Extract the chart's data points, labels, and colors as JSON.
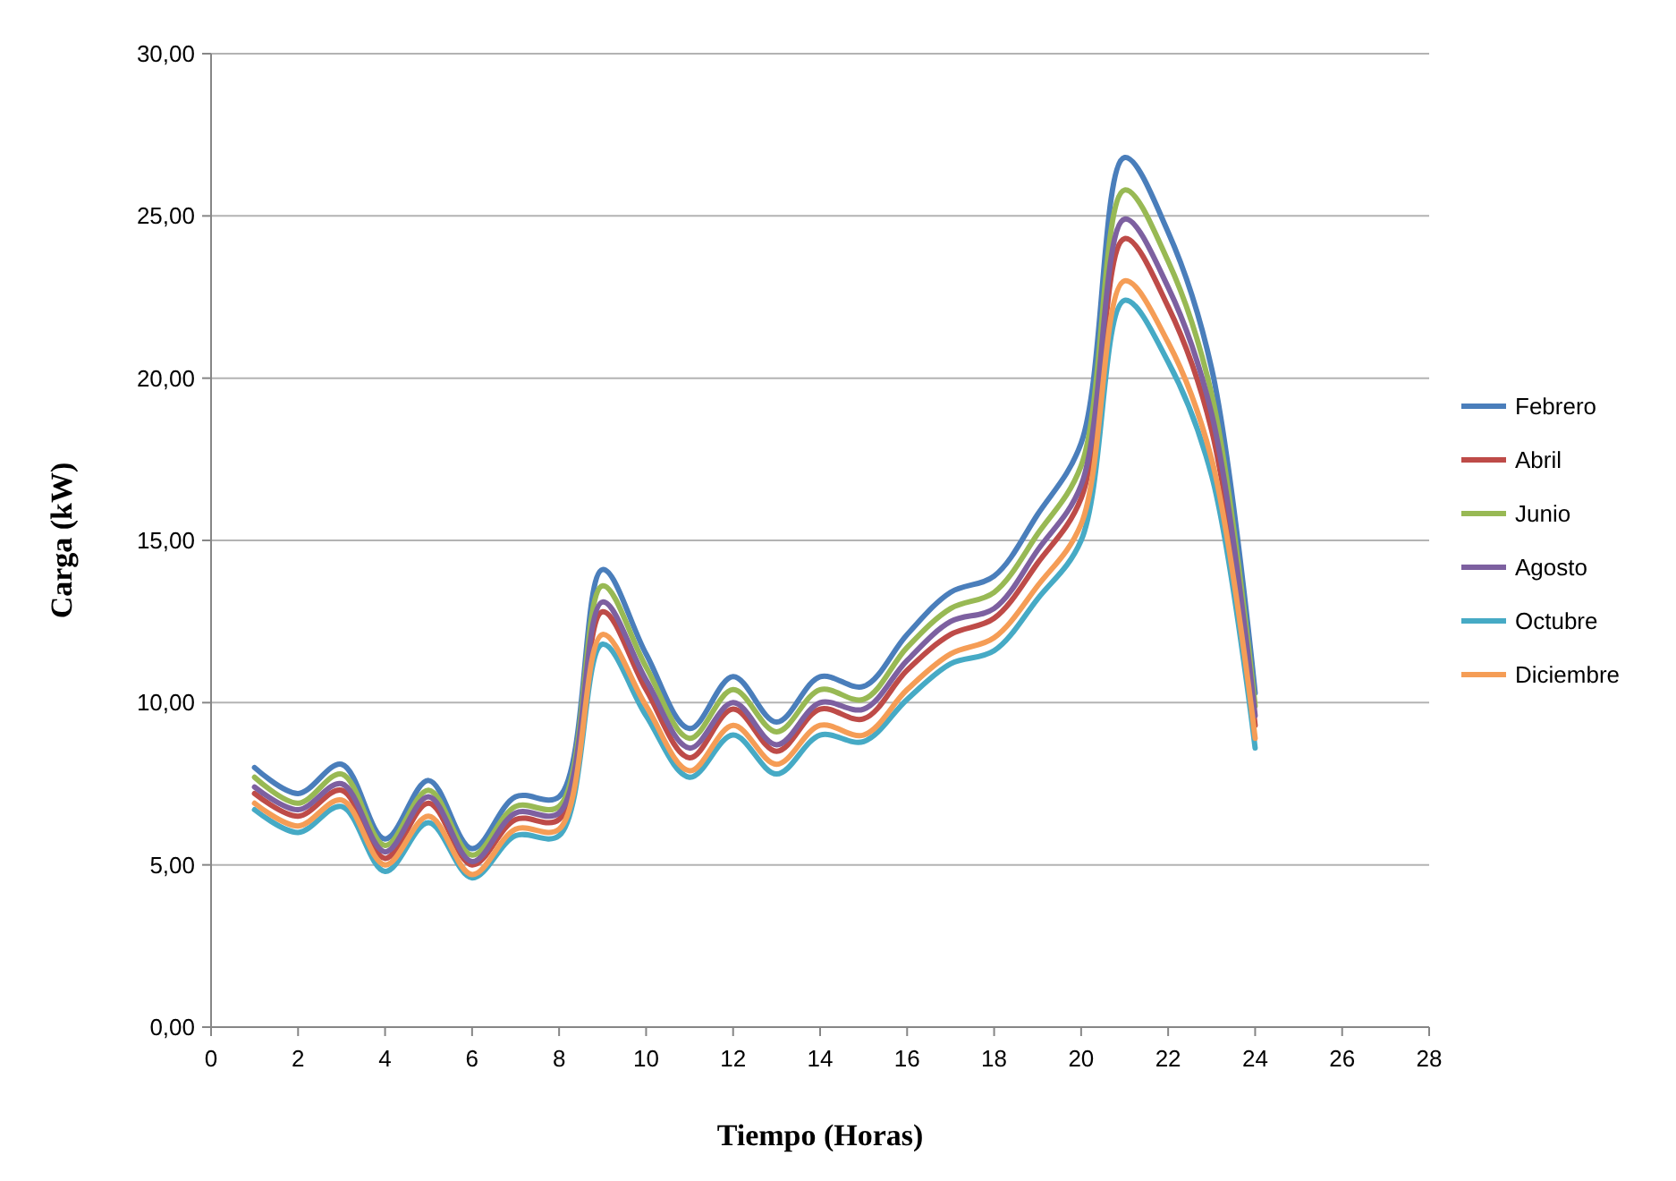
{
  "chart_data": {
    "type": "line",
    "xlabel": "Tiempo (Horas)",
    "ylabel": "Carga (kW)",
    "x": [
      1,
      2,
      3,
      4,
      5,
      6,
      7,
      8,
      9,
      10,
      11,
      12,
      13,
      14,
      15,
      16,
      17,
      18,
      19,
      20,
      21,
      22,
      23,
      24
    ],
    "xlim": [
      0,
      28
    ],
    "xticks": [
      0,
      2,
      4,
      6,
      8,
      10,
      12,
      14,
      16,
      18,
      20,
      22,
      24,
      26,
      28
    ],
    "ylim": [
      0,
      30
    ],
    "yticks": [
      {
        "value": 0,
        "label": "0,00"
      },
      {
        "value": 5,
        "label": "5,00"
      },
      {
        "value": 10,
        "label": "10,00"
      },
      {
        "value": 15,
        "label": "15,00"
      },
      {
        "value": 20,
        "label": "20,00"
      },
      {
        "value": 25,
        "label": "25,00"
      },
      {
        "value": 30,
        "label": "30,00"
      }
    ],
    "grid": "y",
    "legend": "right",
    "marker": "none",
    "line_style": "solid",
    "series": [
      {
        "name": "Febrero",
        "color": "#4a7ebb",
        "values": [
          8.0,
          7.2,
          8.1,
          5.8,
          7.6,
          5.5,
          7.1,
          7.1,
          14.1,
          11.5,
          9.2,
          10.8,
          9.4,
          10.8,
          10.5,
          12.1,
          13.4,
          13.9,
          15.8,
          18.0,
          26.8,
          24.5,
          20.3,
          10.3
        ]
      },
      {
        "name": "Abril",
        "color": "#be4b48",
        "values": [
          7.2,
          6.5,
          7.3,
          5.2,
          6.9,
          5.0,
          6.4,
          6.4,
          12.8,
          10.4,
          8.3,
          9.8,
          8.5,
          9.8,
          9.5,
          11.0,
          12.1,
          12.6,
          14.3,
          16.3,
          24.3,
          22.2,
          18.4,
          9.3
        ]
      },
      {
        "name": "Junio",
        "color": "#98b954",
        "values": [
          7.7,
          6.9,
          7.8,
          5.6,
          7.3,
          5.3,
          6.8,
          6.8,
          13.6,
          11.1,
          8.9,
          10.4,
          9.1,
          10.4,
          10.1,
          11.7,
          12.9,
          13.4,
          15.2,
          17.3,
          25.8,
          23.6,
          19.5,
          9.9
        ]
      },
      {
        "name": "Agosto",
        "color": "#7d60a0",
        "values": [
          7.4,
          6.7,
          7.5,
          5.4,
          7.1,
          5.1,
          6.6,
          6.6,
          13.1,
          10.7,
          8.6,
          10.0,
          8.7,
          10.0,
          9.8,
          11.3,
          12.5,
          12.9,
          14.7,
          16.7,
          24.9,
          22.8,
          18.9,
          9.6
        ]
      },
      {
        "name": "Octubre",
        "color": "#46aac5",
        "values": [
          6.7,
          6.0,
          6.8,
          4.8,
          6.3,
          4.6,
          5.9,
          5.9,
          11.8,
          9.6,
          7.7,
          9.0,
          7.8,
          9.0,
          8.8,
          10.1,
          11.2,
          11.6,
          13.2,
          15.0,
          22.4,
          20.5,
          17.0,
          8.6
        ]
      },
      {
        "name": "Diciembre",
        "color": "#f59d56",
        "values": [
          6.9,
          6.2,
          7.0,
          5.0,
          6.5,
          4.7,
          6.1,
          6.1,
          12.1,
          9.9,
          7.9,
          9.3,
          8.1,
          9.3,
          9.0,
          10.4,
          11.5,
          12.0,
          13.6,
          15.5,
          23.0,
          21.1,
          17.5,
          8.9
        ]
      }
    ]
  }
}
